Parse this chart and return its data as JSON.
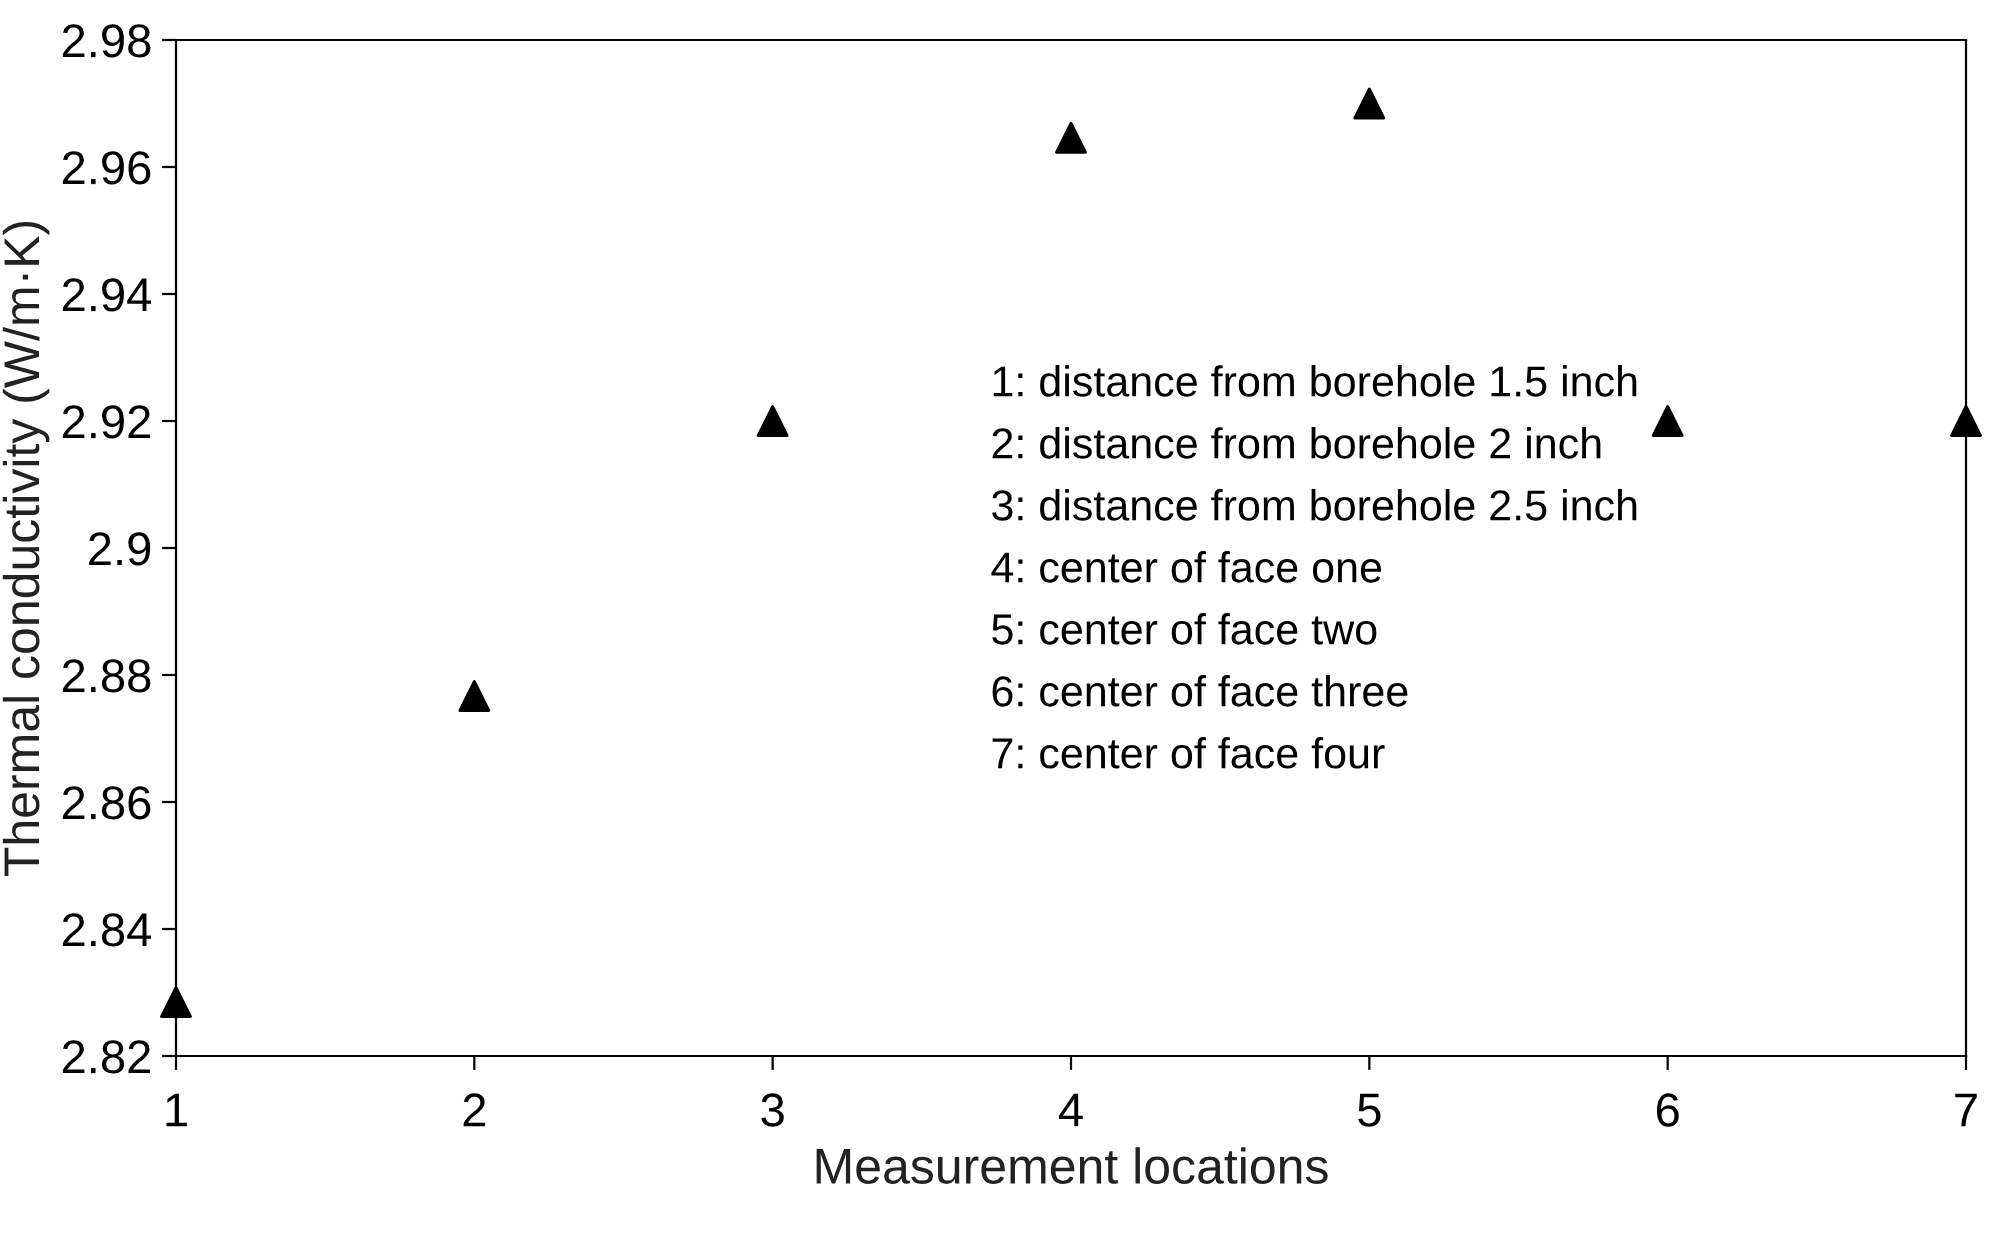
{
  "chart_data": {
    "type": "scatter",
    "xlabel": "Measurement locations",
    "ylabel": "Thermal conductivity (W/m·K)",
    "x": [
      1,
      2,
      3,
      4,
      5,
      6,
      7
    ],
    "values": [
      2.8285,
      2.8767,
      2.92,
      2.9646,
      2.97,
      2.92,
      2.92
    ],
    "color": "#000000",
    "marker": "triangle",
    "grid": false,
    "xlim": [
      1,
      7
    ],
    "xticks": [
      1,
      2,
      3,
      4,
      5,
      6,
      7
    ],
    "ylim": [
      2.82,
      2.98
    ],
    "yticks": [
      2.82,
      2.84,
      2.86,
      2.88,
      2.9,
      2.92,
      2.94,
      2.96,
      2.98
    ],
    "annotations": [
      "1: distance from borehole 1.5 inch",
      "2: distance from borehole 2 inch",
      "3: distance from borehole 2.5 inch",
      "4: center of face one",
      "5: center of face two",
      "6: center of face three",
      "7: center of face four"
    ]
  }
}
